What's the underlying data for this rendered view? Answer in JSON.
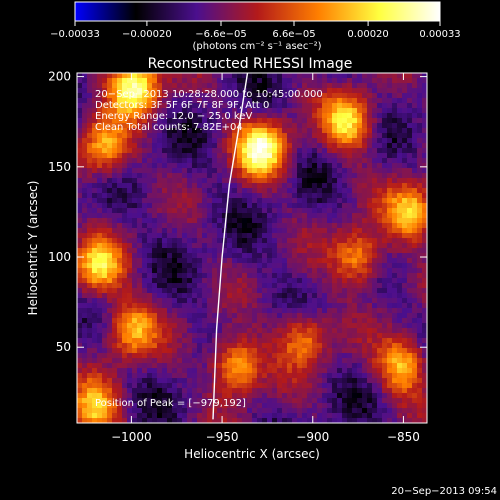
{
  "chart_data": {
    "type": "heatmap",
    "title": "Reconstructed RHESSI Image",
    "xlabel": "Heliocentric X (arcsec)",
    "ylabel": "Heliocentric Y (arcsec)",
    "xlim": [
      -1030,
      -837
    ],
    "ylim": [
      8,
      202
    ],
    "x_ticks": [
      {
        "v": -1000,
        "label": "−1000"
      },
      {
        "v": -950,
        "label": "−950"
      },
      {
        "v": -900,
        "label": "−900"
      },
      {
        "v": -850,
        "label": "−850"
      }
    ],
    "y_ticks": [
      {
        "v": 50,
        "label": "50"
      },
      {
        "v": 100,
        "label": "100"
      },
      {
        "v": 150,
        "label": "150"
      },
      {
        "v": 200,
        "label": "200"
      }
    ],
    "colorbar": {
      "min": -0.00033,
      "max": 0.00033,
      "ticks": [
        {
          "v": -0.00033,
          "label": "−0.00033"
        },
        {
          "v": -0.0002,
          "label": "−0.00020"
        },
        {
          "v": -6.6e-05,
          "label": "−6.6e−05"
        },
        {
          "v": 6.6e-05,
          "label": "6.6e−05"
        },
        {
          "v": 0.0002,
          "label": "0.00020"
        },
        {
          "v": 0.00033,
          "label": "0.00033"
        }
      ],
      "units": "(photons cm⁻² s⁻¹ asec⁻²)",
      "colors": [
        "#0000ff",
        "#000000",
        "#4b0f8e",
        "#b31a1a",
        "#ff7f00",
        "#ffff40",
        "#ffffff"
      ]
    },
    "annotations": [
      "20−Sep−2013 10:28:28.000 to 10:45:00.000",
      "Detectors: 3F 5F 6F 7F 8F 9F, Att 0",
      "Energy Range: 12.0 − 25.0 keV",
      "Clean    Total counts: 7.82E+04"
    ],
    "peak_label": "Position of Peak = [−979,192]",
    "peak": [
      -979,
      192
    ],
    "limb_points": [
      [
        -955,
        10
      ],
      [
        -953,
        60
      ],
      [
        -950,
        100
      ],
      [
        -946,
        140
      ],
      [
        -941,
        170
      ],
      [
        -936,
        202
      ]
    ],
    "hot_spots": [
      {
        "x": -998,
        "y": 195,
        "strength": 1.0
      },
      {
        "x": -928,
        "y": 160,
        "strength": 1.0
      },
      {
        "x": -1015,
        "y": 160,
        "strength": 0.7
      },
      {
        "x": -880,
        "y": 175,
        "strength": 0.8
      },
      {
        "x": -845,
        "y": 125,
        "strength": 0.8
      },
      {
        "x": -875,
        "y": 100,
        "strength": 0.7
      },
      {
        "x": -1018,
        "y": 95,
        "strength": 0.75
      },
      {
        "x": -1000,
        "y": 60,
        "strength": 0.7
      },
      {
        "x": -942,
        "y": 40,
        "strength": 0.8
      },
      {
        "x": -905,
        "y": 55,
        "strength": 0.6
      },
      {
        "x": -850,
        "y": 40,
        "strength": 0.75
      },
      {
        "x": -1020,
        "y": 15,
        "strength": 0.7
      }
    ]
  },
  "footer": {
    "timestamp": "20−Sep−2013 09:54"
  }
}
